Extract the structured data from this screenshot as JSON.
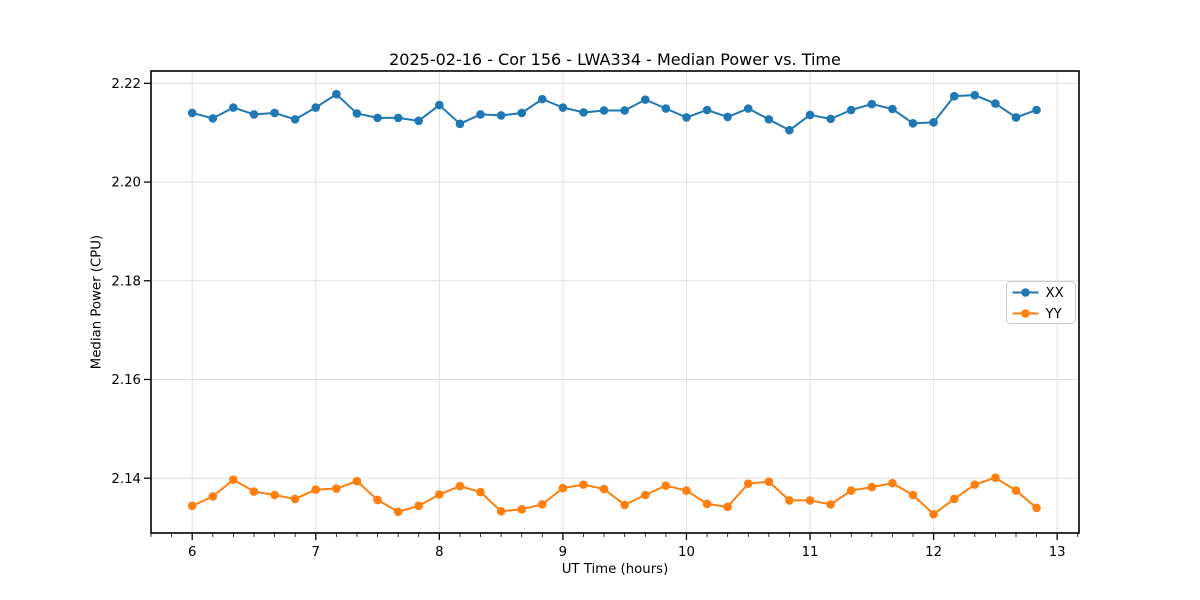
{
  "figure": {
    "background": "#ffffff"
  },
  "chart_data": {
    "type": "line",
    "title": "2025-02-16 - Cor 156 - LWA334 - Median Power vs. Time",
    "xlabel": "UT Time (hours)",
    "ylabel": "Median Power (CPU)",
    "x": [
      6.0,
      6.167,
      6.333,
      6.5,
      6.667,
      6.833,
      7.0,
      7.167,
      7.333,
      7.5,
      7.667,
      7.833,
      8.0,
      8.167,
      8.333,
      8.5,
      8.667,
      8.833,
      9.0,
      9.167,
      9.333,
      9.5,
      9.667,
      9.833,
      10.0,
      10.167,
      10.333,
      10.5,
      10.667,
      10.833,
      11.0,
      11.167,
      11.333,
      11.5,
      11.667,
      11.833,
      12.0,
      12.167,
      12.333,
      12.5,
      12.667,
      12.833
    ],
    "series": [
      {
        "name": "XX",
        "color": "#1f77b4",
        "values": [
          2.214,
          2.2129,
          2.2151,
          2.2137,
          2.214,
          2.2127,
          2.2151,
          2.2178,
          2.2139,
          2.213,
          2.213,
          2.2124,
          2.2156,
          2.2118,
          2.2137,
          2.2135,
          2.214,
          2.2168,
          2.2151,
          2.2141,
          2.2145,
          2.2145,
          2.2167,
          2.2149,
          2.2131,
          2.2146,
          2.2132,
          2.2149,
          2.2127,
          2.2105,
          2.2136,
          2.2128,
          2.2146,
          2.2158,
          2.2148,
          2.2119,
          2.2121,
          2.2174,
          2.2176,
          2.2159,
          2.2131,
          2.2146
        ]
      },
      {
        "name": "YY",
        "color": "#ff7f0e",
        "values": [
          2.1344,
          2.1363,
          2.1397,
          2.1373,
          2.1366,
          2.1358,
          2.1377,
          2.1379,
          2.1394,
          2.1356,
          2.1332,
          2.1344,
          2.1367,
          2.1384,
          2.1372,
          2.1333,
          2.1337,
          2.1347,
          2.138,
          2.1387,
          2.1378,
          2.1346,
          2.1366,
          2.1385,
          2.1375,
          2.1348,
          2.1342,
          2.1389,
          2.1393,
          2.1355,
          2.1355,
          2.1347,
          2.1375,
          2.1382,
          2.139,
          2.1366,
          2.1327,
          2.1358,
          2.1387,
          2.1401,
          2.1375,
          2.134
        ]
      }
    ],
    "xlim": [
      5.6667,
      13.1767
    ],
    "ylim": [
      2.1289,
      2.2225
    ],
    "xticks": {
      "values": [
        6,
        7,
        8,
        9,
        10,
        11,
        12,
        13
      ],
      "labels": [
        "6",
        "7",
        "8",
        "9",
        "10",
        "11",
        "12",
        "13"
      ]
    },
    "yticks": {
      "values": [
        2.14,
        2.16,
        2.18,
        2.2,
        2.22
      ],
      "labels": [
        "2.14",
        "2.16",
        "2.18",
        "2.20",
        "2.22"
      ]
    },
    "x_minor_tick_step": 0.16667,
    "grid": true,
    "grid_color": "#e0e0e0",
    "legend": {
      "position": "center right",
      "labels": [
        "XX",
        "YY"
      ]
    }
  }
}
